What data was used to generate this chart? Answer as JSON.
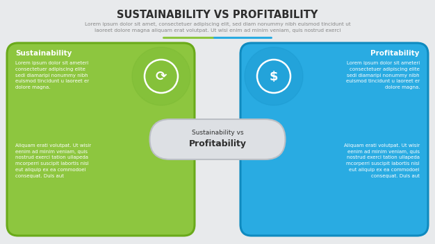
{
  "title": "SUSTAINABILITY VS PROFITABILITY",
  "subtitle_line1": "Lorem ipsum dolor sit amet, consectetuer adipiscing elit, sed diam nonummy nibh euismod tincidunt ut",
  "subtitle_line2": "laoreet dolore magna aliquam erat volutpat. Ut wisi enim ad minim veniam, quis nostrud exerci",
  "bg_color": "#e8eaec",
  "left_box_color": "#8dc63f",
  "left_box_border": "#6aaa1a",
  "right_box_color": "#29abe2",
  "right_box_border": "#0f8abf",
  "center_box_color": "#dde0e4",
  "center_box_border": "#bbbfc5",
  "left_title": "Sustainability",
  "right_title": "Profitability",
  "center_line1": "Sustainability vs",
  "center_line2": "Profitability",
  "left_body1": "Lorem ipsum dolor sit ameteri\nconsectetuer adipiscing elite\nsedi diamaripi nonummy nibh\neuismod tincidunt u laoreet er\ndolore magna.",
  "left_body2": "Aliquam erati volutpat. Ut wisir\neenim ad minim veniam, quis\nnostrud exerci tation ullapeda\nmcorperri suscipit labortis nisl\neut aliquip ex ea commodoei\nconsequat. Duis aut",
  "right_body1": "Lorem ipsum dolor sit ameteri\nconsectetuer adipiscing elite\nsedi diamaripi nonummy nibh\neuismod tincidunt u laoreet er\ndolore magna.",
  "right_body2": "Aliquam erati volutpat. Ut wisir\neenim ad minim veniam, quis\nnostrud exerci tation ullapeda\nmcorperri suscipit labortis nisl\neut aliquip ex ea commodoei\nconsequat. Duis aut",
  "divider_green": "#8dc63f",
  "divider_blue": "#29abe2",
  "white": "#ffffff",
  "text_white": "#ffffff",
  "text_dark": "#2d2d2d",
  "text_gray": "#888888",
  "icon_left_bg": "#78b832",
  "icon_right_bg": "#1a96cc"
}
